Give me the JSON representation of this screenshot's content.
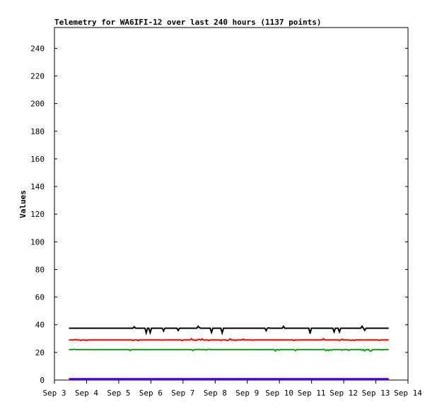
{
  "chart_data": {
    "type": "line",
    "title": "Telemetry for WA6IFI-12 over last 240 hours (1137 points)",
    "xlabel": "",
    "ylabel": "Values",
    "x_ticks": [
      "Sep 3",
      "Sep 4",
      "Sep 5",
      "Sep 6",
      "Sep 7",
      "Sep 8",
      "Sep 9",
      "Sep 10",
      "Sep 11",
      "Sep 12",
      "Sep 13",
      "Sep 14"
    ],
    "x_start": "2024-09-03",
    "xlim_days": [
      0,
      11
    ],
    "data_range_days": [
      0.45,
      10.4
    ],
    "y_ticks": [
      0,
      20,
      40,
      60,
      80,
      100,
      120,
      140,
      160,
      180,
      200,
      220,
      240
    ],
    "ylim": [
      0,
      255
    ],
    "grid": false,
    "legend": "none",
    "series": [
      {
        "color": "#000000",
        "baseline": 37.5,
        "dip_min": 33,
        "spike_max": 39
      },
      {
        "color": "#ff0000",
        "baseline": 29,
        "dip_min": 28.5,
        "spike_max": 30.5
      },
      {
        "color": "#00aa00",
        "baseline": 22,
        "dip_min": 21,
        "spike_max": 22.5
      },
      {
        "color": "#0000ff",
        "baseline": 0.5,
        "dip_min": 0.5,
        "spike_max": 0.5
      },
      {
        "color": "#7f00ff",
        "baseline": 1,
        "dip_min": 1,
        "spike_max": 1
      }
    ]
  }
}
